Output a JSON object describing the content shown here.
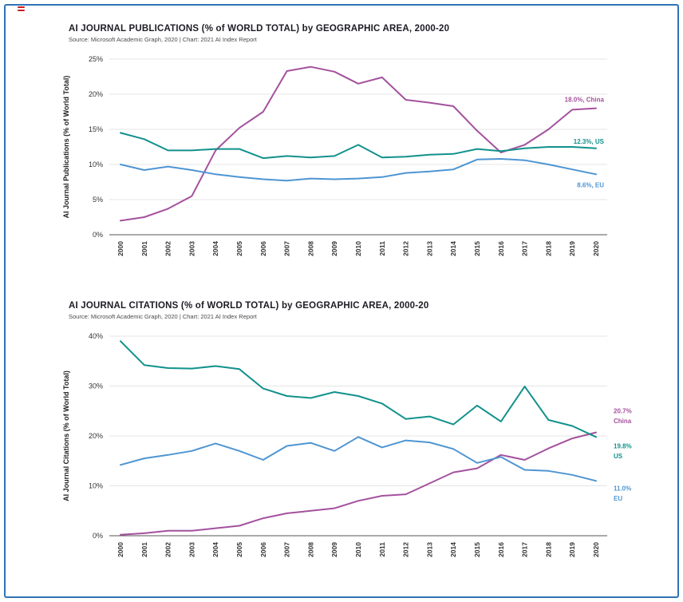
{
  "page": {
    "border_color": "#2e74b5",
    "background": "#ffffff",
    "corner_mark_color": "#c51f1f"
  },
  "chart_data": [
    {
      "type": "line",
      "title": "AI JOURNAL PUBLICATIONS (% of WORLD TOTAL) by GEOGRAPHIC AREA, 2000-20",
      "source": "Source: Microsoft Academic Graph, 2020 | Chart: 2021 AI Index Report",
      "ylabel": "AI Journal Publications (% of World Total)",
      "xlabel": "",
      "ylim": [
        0,
        25
      ],
      "ytick_step": 5,
      "grid": true,
      "label_pos": "inside",
      "x": [
        "2000",
        "2001",
        "2002",
        "2003",
        "2004",
        "2005",
        "2006",
        "2007",
        "2008",
        "2009",
        "2010",
        "2011",
        "2012",
        "2013",
        "2014",
        "2015",
        "2016",
        "2017",
        "2018",
        "2019",
        "2020"
      ],
      "series": [
        {
          "name": "China",
          "color": "#a4519e",
          "label_dy": -8,
          "end_label_lines": [
            "18.0%, China"
          ],
          "values": [
            2.0,
            2.5,
            3.7,
            5.5,
            12.0,
            15.2,
            17.5,
            23.3,
            23.9,
            23.2,
            21.5,
            22.4,
            19.2,
            18.8,
            18.3,
            14.8,
            11.7,
            12.8,
            15.0,
            17.8,
            18.0
          ]
        },
        {
          "name": "US",
          "color": "#12918c",
          "label_dy": -6,
          "end_label_lines": [
            "12.3%, US"
          ],
          "values": [
            14.5,
            13.6,
            12.0,
            12.0,
            12.2,
            12.2,
            10.9,
            11.2,
            11.0,
            11.2,
            12.8,
            11.0,
            11.1,
            11.4,
            11.5,
            12.2,
            11.9,
            12.3,
            12.5,
            12.5,
            12.3
          ]
        },
        {
          "name": "EU",
          "color": "#4e95d2",
          "label_dy": 16,
          "end_label_lines": [
            "8.6%, EU"
          ],
          "values": [
            10.0,
            9.2,
            9.7,
            9.2,
            8.6,
            8.2,
            7.9,
            7.7,
            8.0,
            7.9,
            8.0,
            8.2,
            8.8,
            9.0,
            9.3,
            10.7,
            10.8,
            10.6,
            10.0,
            9.3,
            8.6
          ]
        }
      ]
    },
    {
      "type": "line",
      "title": "AI JOURNAL CITATIONS (% of WORLD TOTAL) by GEOGRAPHIC AREA, 2000-20",
      "source": "Source: Microsoft Academic Graph, 2020 | Chart: 2021 AI Index Report",
      "ylabel": "AI Journal Citations (% of World Total)",
      "xlabel": "",
      "ylim": [
        0,
        40
      ],
      "ytick_step": 10,
      "grid": true,
      "label_pos": "outside",
      "x": [
        "2000",
        "2001",
        "2002",
        "2003",
        "2004",
        "2005",
        "2006",
        "2007",
        "2008",
        "2009",
        "2010",
        "2011",
        "2012",
        "2013",
        "2014",
        "2015",
        "2016",
        "2017",
        "2018",
        "2019",
        "2020"
      ],
      "series": [
        {
          "name": "China",
          "color": "#a4519e",
          "label_dy": -24,
          "end_label_lines": [
            "20.7%",
            "China"
          ],
          "values": [
            0.2,
            0.5,
            1.0,
            1.0,
            1.5,
            2.0,
            3.5,
            4.5,
            5.0,
            5.5,
            7.0,
            8.0,
            8.3,
            10.5,
            12.7,
            13.5,
            16.2,
            15.2,
            17.5,
            19.5,
            20.7
          ]
        },
        {
          "name": "US",
          "color": "#12918c",
          "label_dy": 14,
          "end_label_lines": [
            "19.8%",
            "US"
          ],
          "values": [
            39.0,
            34.2,
            33.6,
            33.5,
            34.0,
            33.4,
            29.5,
            28.0,
            27.6,
            28.8,
            28.0,
            26.5,
            23.4,
            23.9,
            22.3,
            26.1,
            22.9,
            29.9,
            23.2,
            22.0,
            19.8
          ]
        },
        {
          "name": "EU",
          "color": "#4e95d2",
          "label_dy": 12,
          "end_label_lines": [
            "11.0%",
            "EU"
          ],
          "values": [
            14.2,
            15.5,
            16.2,
            17.0,
            18.5,
            17.0,
            15.2,
            18.0,
            18.6,
            17.0,
            19.8,
            17.7,
            19.1,
            18.7,
            17.4,
            14.6,
            15.8,
            13.2,
            13.0,
            12.2,
            11.0
          ]
        }
      ]
    }
  ]
}
